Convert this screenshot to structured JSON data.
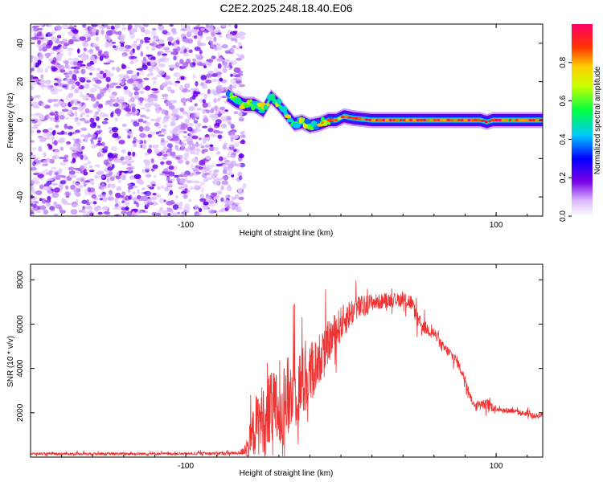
{
  "title": "C2E2.2025.248.18.40.E06",
  "chart_data": [
    {
      "type": "heatmap",
      "title": "C2E2.2025.248.18.40.E06",
      "xlabel": "Height of straight line (km)",
      "ylabel": "Frequency (Hz)",
      "xlim": [
        -200,
        130
      ],
      "ylim": [
        -50,
        50
      ],
      "xticks": [
        -100,
        100
      ],
      "yticks": [
        -40,
        -20,
        0,
        20,
        40
      ],
      "noise_region": {
        "x_range": [
          -200,
          -63
        ],
        "description_values": "random purple speckle of low normalized amplitude"
      },
      "trace": [
        {
          "x": -73,
          "y": 13
        },
        {
          "x": -68,
          "y": 10
        },
        {
          "x": -62,
          "y": 8
        },
        {
          "x": -56,
          "y": 8
        },
        {
          "x": -50,
          "y": 5
        },
        {
          "x": -45,
          "y": 12
        },
        {
          "x": -40,
          "y": 8
        },
        {
          "x": -35,
          "y": 3
        },
        {
          "x": -30,
          "y": -2
        },
        {
          "x": -25,
          "y": -1
        },
        {
          "x": -20,
          "y": -3
        },
        {
          "x": -14,
          "y": -2
        },
        {
          "x": -8,
          "y": 0
        },
        {
          "x": -3,
          "y": 0
        },
        {
          "x": 2,
          "y": 2
        },
        {
          "x": 8,
          "y": 1
        },
        {
          "x": 20,
          "y": 0
        },
        {
          "x": 60,
          "y": 0
        },
        {
          "x": 90,
          "y": 0
        },
        {
          "x": 94,
          "y": -1
        },
        {
          "x": 98,
          "y": 0
        },
        {
          "x": 130,
          "y": 0
        }
      ],
      "colorbar": {
        "label": "Normalized spectral amplitude",
        "range": [
          0,
          1
        ],
        "ticks": [
          "0.0",
          "0.2",
          "0.4",
          "0.6",
          "0.8"
        ],
        "tick_values": [
          0.0,
          0.2,
          0.4,
          0.6,
          0.8
        ]
      }
    },
    {
      "type": "line",
      "xlabel": "Height of straight line (km)",
      "ylabel": "SNR (10 * v/v)",
      "xlim": [
        -200,
        130
      ],
      "ylim": [
        0,
        8700
      ],
      "xticks": [
        -100,
        100
      ],
      "yticks": [
        2000,
        4000,
        6000,
        8000
      ],
      "series": [
        {
          "name": "SNR",
          "color": "#ee3333",
          "x": [
            -200,
            -100,
            -65,
            -60,
            -55,
            -50,
            -45,
            -40,
            -35,
            -30,
            -25,
            -20,
            -15,
            -10,
            -5,
            0,
            5,
            10,
            15,
            20,
            25,
            30,
            35,
            40,
            45,
            50,
            55,
            60,
            65,
            70,
            75,
            80,
            85,
            90,
            95,
            100,
            105,
            110,
            115,
            120,
            125,
            130
          ],
          "y": [
            150,
            150,
            180,
            500,
            1400,
            1800,
            2000,
            2200,
            2600,
            3000,
            3300,
            3700,
            4300,
            5000,
            5500,
            6000,
            6400,
            6700,
            6800,
            7000,
            7000,
            7100,
            7100,
            7100,
            7000,
            6100,
            5800,
            5600,
            5000,
            4700,
            4300,
            3500,
            2400,
            2400,
            2350,
            2200,
            2100,
            2100,
            2000,
            1950,
            1850,
            1900
          ],
          "spread": [
            60,
            60,
            80,
            500,
            1400,
            1600,
            1800,
            1900,
            1900,
            1800,
            1700,
            1500,
            1200,
            1000,
            900,
            800,
            700,
            600,
            500,
            400,
            350,
            350,
            300,
            350,
            400,
            350,
            300,
            300,
            250,
            250,
            250,
            200,
            150,
            150,
            300,
            150,
            130,
            130,
            120,
            120,
            120,
            120
          ]
        }
      ]
    }
  ]
}
